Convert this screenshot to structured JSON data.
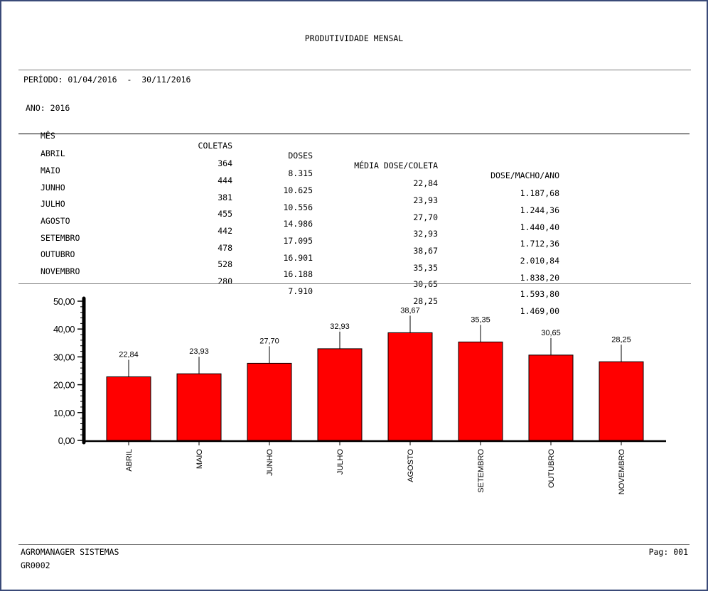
{
  "report": {
    "title": "PRODUTIVIDADE MENSAL",
    "period_label": "PERÍODO:",
    "period_start": "01/04/2016",
    "period_sep": "-",
    "period_end": "30/11/2016",
    "year_label": "ANO:",
    "year": "2016"
  },
  "table": {
    "headers": {
      "mes": "MÊS",
      "coletas": "COLETAS",
      "doses": "DOSES",
      "media": "MÉDIA DOSE/COLETA",
      "dose_macho": "DOSE/MACHO/ANO"
    },
    "rows": [
      {
        "mes": "ABRIL",
        "coletas": "364",
        "doses": "8.315",
        "media": "22,84",
        "dose_macho": "1.187,68"
      },
      {
        "mes": "MAIO",
        "coletas": "444",
        "doses": "10.625",
        "media": "23,93",
        "dose_macho": "1.244,36"
      },
      {
        "mes": "JUNHO",
        "coletas": "381",
        "doses": "10.556",
        "media": "27,70",
        "dose_macho": "1.440,40"
      },
      {
        "mes": "JULHO",
        "coletas": "455",
        "doses": "14.986",
        "media": "32,93",
        "dose_macho": "1.712,36"
      },
      {
        "mes": "AGOSTO",
        "coletas": "442",
        "doses": "17.095",
        "media": "38,67",
        "dose_macho": "2.010,84"
      },
      {
        "mes": "SETEMBRO",
        "coletas": "478",
        "doses": "16.901",
        "media": "35,35",
        "dose_macho": "1.838,20"
      },
      {
        "mes": "OUTUBRO",
        "coletas": "528",
        "doses": "16.188",
        "media": "30,65",
        "dose_macho": "1.593,80"
      },
      {
        "mes": "NOVEMBRO",
        "coletas": "280",
        "doses": "7.910",
        "media": "28,25",
        "dose_macho": "1.469,00"
      }
    ]
  },
  "chart_data": {
    "type": "bar",
    "categories": [
      "ABRIL",
      "MAIO",
      "JUNHO",
      "JULHO",
      "AGOSTO",
      "SETEMBRO",
      "OUTUBRO",
      "NOVEMBRO"
    ],
    "values": [
      22.84,
      23.93,
      27.7,
      32.93,
      38.67,
      35.35,
      30.65,
      28.25
    ],
    "value_labels": [
      "22,84",
      "23,93",
      "27,70",
      "32,93",
      "38,67",
      "35,35",
      "30,65",
      "28,25"
    ],
    "y_ticks": [
      "0,00",
      "10,00",
      "20,00",
      "30,00",
      "40,00",
      "50,00"
    ],
    "ylim": [
      0,
      50
    ],
    "bar_color": "#ff0000",
    "grid": false
  },
  "footer": {
    "company": "AGROMANAGER SISTEMAS",
    "code": "GR0002",
    "page_label": "Pag:",
    "page": "001"
  }
}
